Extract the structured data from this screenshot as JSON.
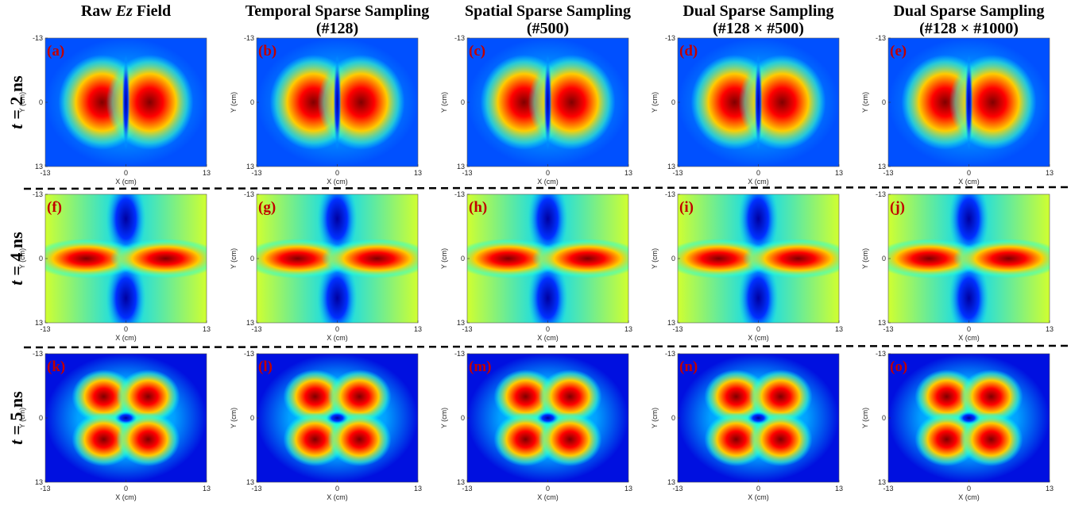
{
  "columns": [
    {
      "title_parts": [
        "Raw",
        "Ez",
        "Field"
      ]
    },
    {
      "title_lines": [
        "Temporal Sparse Sampling",
        "(#128)"
      ]
    },
    {
      "title_lines": [
        "Spatial Sparse Sampling",
        "(#500)"
      ]
    },
    {
      "title_lines": [
        "Dual Sparse Sampling",
        "(#128 × #500)"
      ]
    },
    {
      "title_lines": [
        "Dual Sparse Sampling",
        "(#128 × #1000)"
      ]
    }
  ],
  "rows": [
    {
      "label": [
        "t",
        "= 2 ns"
      ],
      "panels": [
        "(a)",
        "(b)",
        "(c)",
        "(d)",
        "(e)"
      ]
    },
    {
      "label": [
        "t",
        "= 4 ns"
      ],
      "panels": [
        "(f)",
        "(g)",
        "(h)",
        "(i)",
        "(j)"
      ]
    },
    {
      "label": [
        "t",
        "= 5 ns"
      ],
      "panels": [
        "(k)",
        "(l)",
        "(m)",
        "(n)",
        "(o)"
      ]
    }
  ],
  "axes": {
    "xlabel": "X (cm)",
    "ylabel": "Y (cm)",
    "xticks": [
      -13,
      0,
      13
    ],
    "yticks": [
      -13,
      0,
      13
    ],
    "xlim": [
      -13,
      13
    ],
    "ylim": [
      -13,
      13
    ]
  }
}
